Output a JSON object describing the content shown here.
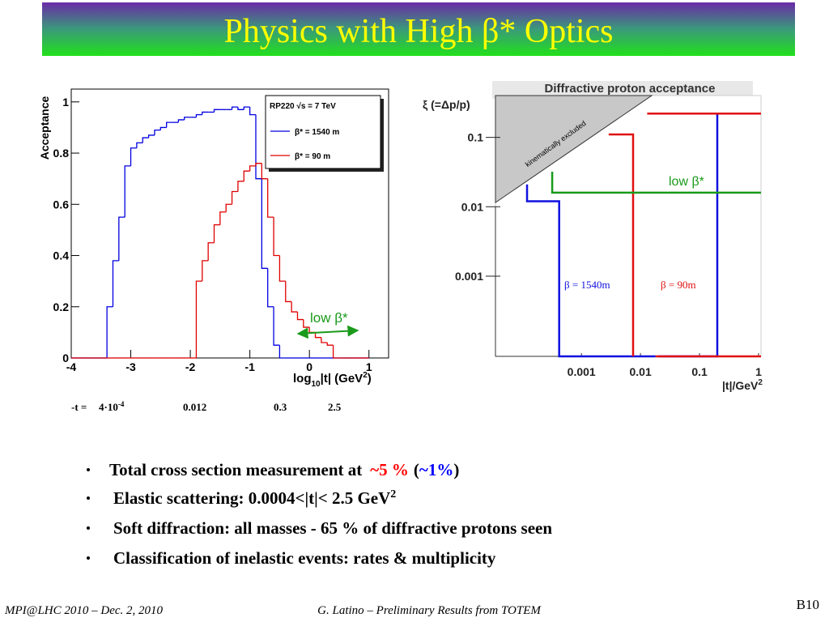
{
  "title": "Physics with High β* Optics",
  "chart_data": [
    {
      "type": "histogram",
      "ylabel": "Acceptance",
      "xlabel_parts": [
        "log",
        "10",
        "|t| (GeV",
        "2",
        ")"
      ],
      "legend_title": "RP220  √s = 7 TeV",
      "annotation": "low β*",
      "annotation_color": "#1a9a1a",
      "xlim": [
        -4,
        1.33
      ],
      "ylim": [
        0,
        1.05
      ],
      "xticks": [
        -4,
        -3,
        -2,
        -1,
        0,
        1
      ],
      "yticks": [
        0,
        0.2,
        0.4,
        0.6,
        0.8,
        1
      ],
      "bins": [
        -4,
        -3.9,
        -3.8,
        -3.7,
        -3.6,
        -3.5,
        -3.4,
        -3.3,
        -3.2,
        -3.1,
        -3,
        -2.9,
        -2.8,
        -2.7,
        -2.6,
        -2.5,
        -2.4,
        -2.3,
        -2.2,
        -2.1,
        -2,
        -1.9,
        -1.8,
        -1.7,
        -1.6,
        -1.5,
        -1.4,
        -1.3,
        -1.2,
        -1.1,
        -1,
        -0.9,
        -0.8,
        -0.7,
        -0.6,
        -0.5,
        -0.4,
        -0.3,
        -0.2,
        -0.1,
        0,
        0.1,
        0.2,
        0.3,
        0.4,
        0.5,
        0.6,
        0.7,
        0.8,
        0.9,
        1
      ],
      "series": [
        {
          "name": "β* = 1540 m",
          "color": "#0000e0",
          "values": [
            0,
            0,
            0,
            0,
            0,
            0,
            0.2,
            0.38,
            0.55,
            0.75,
            0.82,
            0.84,
            0.86,
            0.87,
            0.89,
            0.9,
            0.92,
            0.92,
            0.93,
            0.94,
            0.94,
            0.95,
            0.96,
            0.96,
            0.97,
            0.97,
            0.97,
            0.98,
            0.97,
            0.98,
            0.95,
            0.7,
            0.35,
            0.2,
            0.05,
            0,
            0,
            0,
            0,
            0,
            0,
            0,
            0,
            0,
            0,
            0,
            0,
            0,
            0,
            0
          ]
        },
        {
          "name": "β* = 90 m",
          "color": "#e00000",
          "values": [
            0,
            0,
            0,
            0,
            0,
            0,
            0,
            0,
            0,
            0,
            0,
            0,
            0,
            0,
            0,
            0,
            0,
            0,
            0,
            0,
            0,
            0.3,
            0.38,
            0.45,
            0.52,
            0.57,
            0.6,
            0.65,
            0.69,
            0.73,
            0.75,
            0.76,
            0.7,
            0.55,
            0.4,
            0.3,
            0.22,
            0.18,
            0.15,
            0.12,
            0.1,
            0.08,
            0.06,
            0.05,
            0,
            0,
            0,
            0,
            0,
            0
          ]
        }
      ]
    },
    {
      "type": "line",
      "title": "Diffractive proton acceptance",
      "ylabel": "ξ (=Δp/p)",
      "xlabel_parts": [
        "|t|/GeV",
        "2"
      ],
      "xscale": "log",
      "yscale": "log",
      "xlim": [
        3.5e-05,
        1.1
      ],
      "ylim": [
        7e-05,
        0.4
      ],
      "xticks": [
        0.001,
        0.01,
        0.1,
        1
      ],
      "yticks": [
        0.1,
        0.01,
        0.001
      ],
      "excluded_region": {
        "label": "kinematically excluded",
        "color": "#c8c8c8",
        "x": [
          3.5e-05,
          0.0155
        ],
        "values": [
          0.0115,
          0.4
        ]
      },
      "series": [
        {
          "name": "β = 1540m",
          "color": "#1010e0",
          "x": [
            0.00012,
            0.00012,
            0.00042,
            0.00042,
            0.018,
            null,
            0.02,
            0.2,
            0.2,
            1.1
          ],
          "values": [
            0.021,
            0.012,
            0.012,
            7e-05,
            7e-05,
            null,
            7e-05,
            7e-05,
            0.22,
            0.22
          ]
        },
        {
          "name": "β = 90m",
          "color": "#e01010",
          "x": [
            0.0029,
            0.0075,
            0.0075,
            null,
            0.013,
            1.1,
            null,
            0.018,
            1.1
          ],
          "values": [
            0.11,
            0.11,
            7e-05,
            null,
            0.22,
            0.22,
            null,
            7e-05,
            7e-05
          ]
        },
        {
          "name": "low β*",
          "color": "#1a9a1a",
          "x": [
            0.00032,
            0.00032,
            1.1
          ],
          "values": [
            0.032,
            0.016,
            0.016
          ]
        }
      ]
    }
  ],
  "t_values": {
    "label": "-t =",
    "first_base": "4·10",
    "first_exp": "-4",
    "others": [
      "0.012",
      "0.3",
      "2.5"
    ]
  },
  "bullets": [
    {
      "parts": [
        "Total cross section measurement at",
        "~5 %",
        "(",
        "~1%",
        ")"
      ]
    },
    {
      "parts": [
        "Elastic scattering:  0.0004<|t|< 2.5 GeV",
        "2"
      ]
    },
    {
      "parts": [
        "Soft diffraction: all masses - 65 % of diffractive protons seen"
      ]
    },
    {
      "parts": [
        "Classification of inelastic events: rates & multiplicity"
      ]
    }
  ],
  "footer": {
    "left": "MPI@LHC 2010 – Dec. 2, 2010",
    "center": "G. Latino – Preliminary Results from TOTEM",
    "right": "B10"
  }
}
